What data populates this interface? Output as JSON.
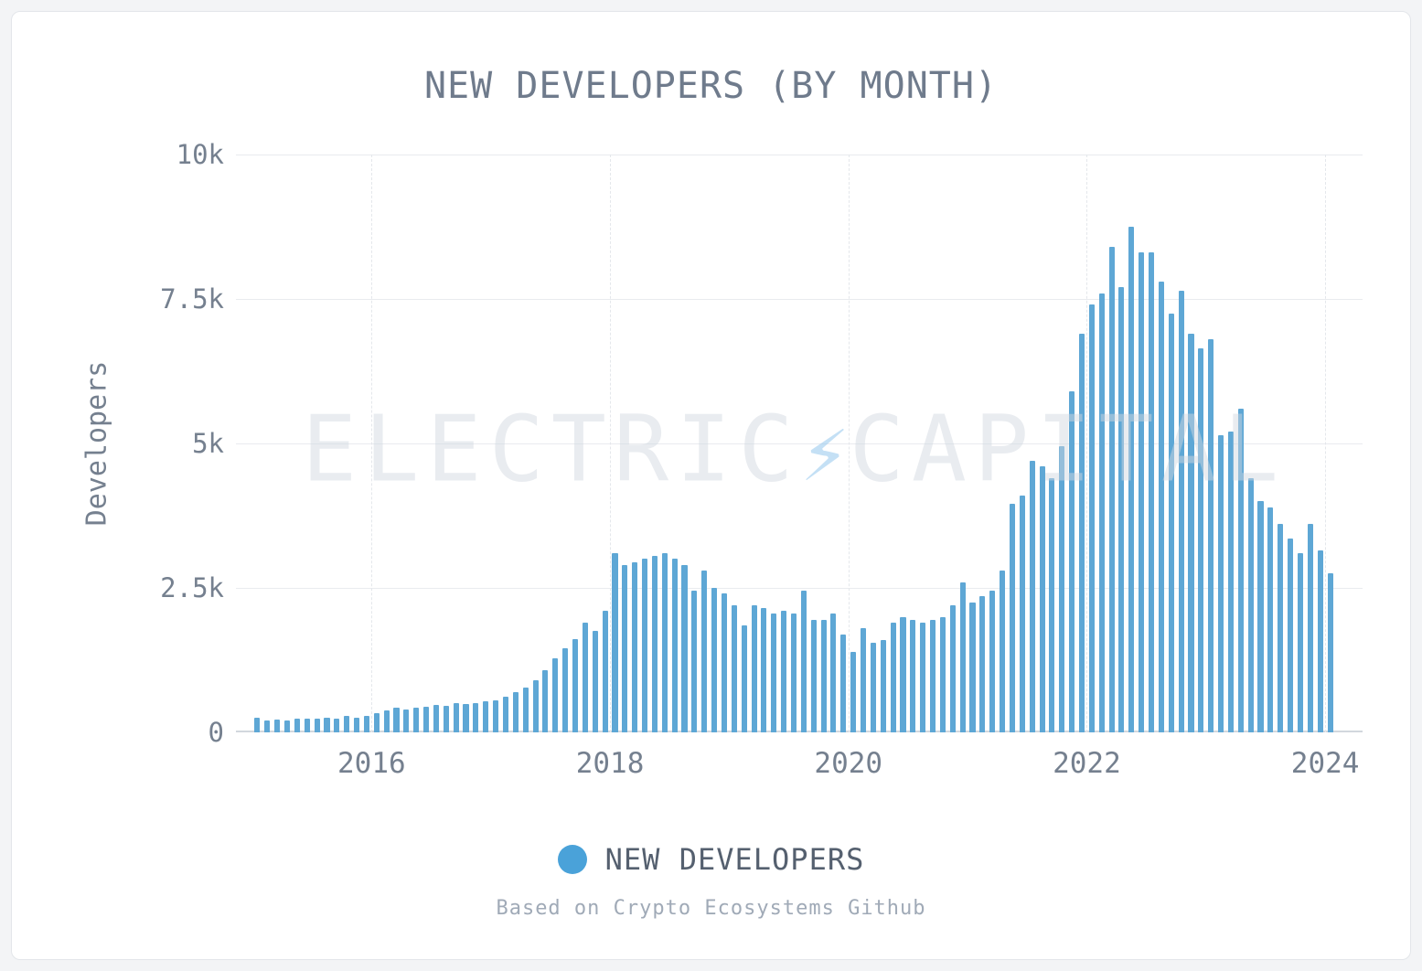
{
  "page": {
    "title": "NEW DEVELOPERS (BY MONTH)"
  },
  "legend": {
    "label": "NEW DEVELOPERS",
    "dot_color": "#4aa2d9"
  },
  "source_note": "Based on Crypto Ecosystems Github",
  "watermark": {
    "left": "ELECTRIC",
    "bolt": "⚡",
    "right": "CAPITAL"
  },
  "colors": {
    "bar": "#5ea7d5",
    "axis_text": "#75808f",
    "gridline": "#e9ebef"
  },
  "chart_data": {
    "type": "bar",
    "title": "NEW DEVELOPERS (BY MONTH)",
    "xlabel": "",
    "ylabel": "Developers",
    "ylim": [
      0,
      10000
    ],
    "grid": true,
    "legend_position": "bottom",
    "x_start_month": "2015-01",
    "x_frequency": "monthly",
    "yticks": [
      {
        "value": 0,
        "label": "0"
      },
      {
        "value": 2500,
        "label": "2.5k"
      },
      {
        "value": 5000,
        "label": "5k"
      },
      {
        "value": 7500,
        "label": "7.5k"
      },
      {
        "value": 10000,
        "label": "10k"
      }
    ],
    "xticks": [
      {
        "label": "2016",
        "month_index": 12
      },
      {
        "label": "2018",
        "month_index": 36
      },
      {
        "label": "2020",
        "month_index": 60
      },
      {
        "label": "2022",
        "month_index": 84
      },
      {
        "label": "2024",
        "month_index": 108
      }
    ],
    "series": [
      {
        "name": "NEW DEVELOPERS",
        "values": [
          250,
          200,
          220,
          200,
          230,
          240,
          240,
          250,
          240,
          280,
          250,
          290,
          330,
          380,
          430,
          400,
          420,
          450,
          480,
          460,
          500,
          490,
          510,
          540,
          560,
          620,
          700,
          780,
          900,
          1080,
          1280,
          1450,
          1620,
          1900,
          1760,
          2100,
          3100,
          2900,
          2950,
          3000,
          3050,
          3100,
          3000,
          2900,
          2450,
          2800,
          2500,
          2400,
          2200,
          1850,
          2200,
          2150,
          2050,
          2100,
          2050,
          2450,
          1950,
          1950,
          2050,
          1700,
          1400,
          1800,
          1550,
          1600,
          1900,
          2000,
          1950,
          1900,
          1950,
          2000,
          2200,
          2600,
          2250,
          2350,
          2450,
          2800,
          3950,
          4100,
          4700,
          4600,
          4400,
          4950,
          5900,
          6900,
          7400,
          7600,
          8400,
          7700,
          8750,
          8300,
          8300,
          7800,
          7250,
          7650,
          6900,
          6650,
          6800,
          5150,
          5200,
          5600,
          4400,
          4000,
          3900,
          3600,
          3350,
          3100,
          3600,
          3150,
          2750
        ]
      }
    ]
  }
}
